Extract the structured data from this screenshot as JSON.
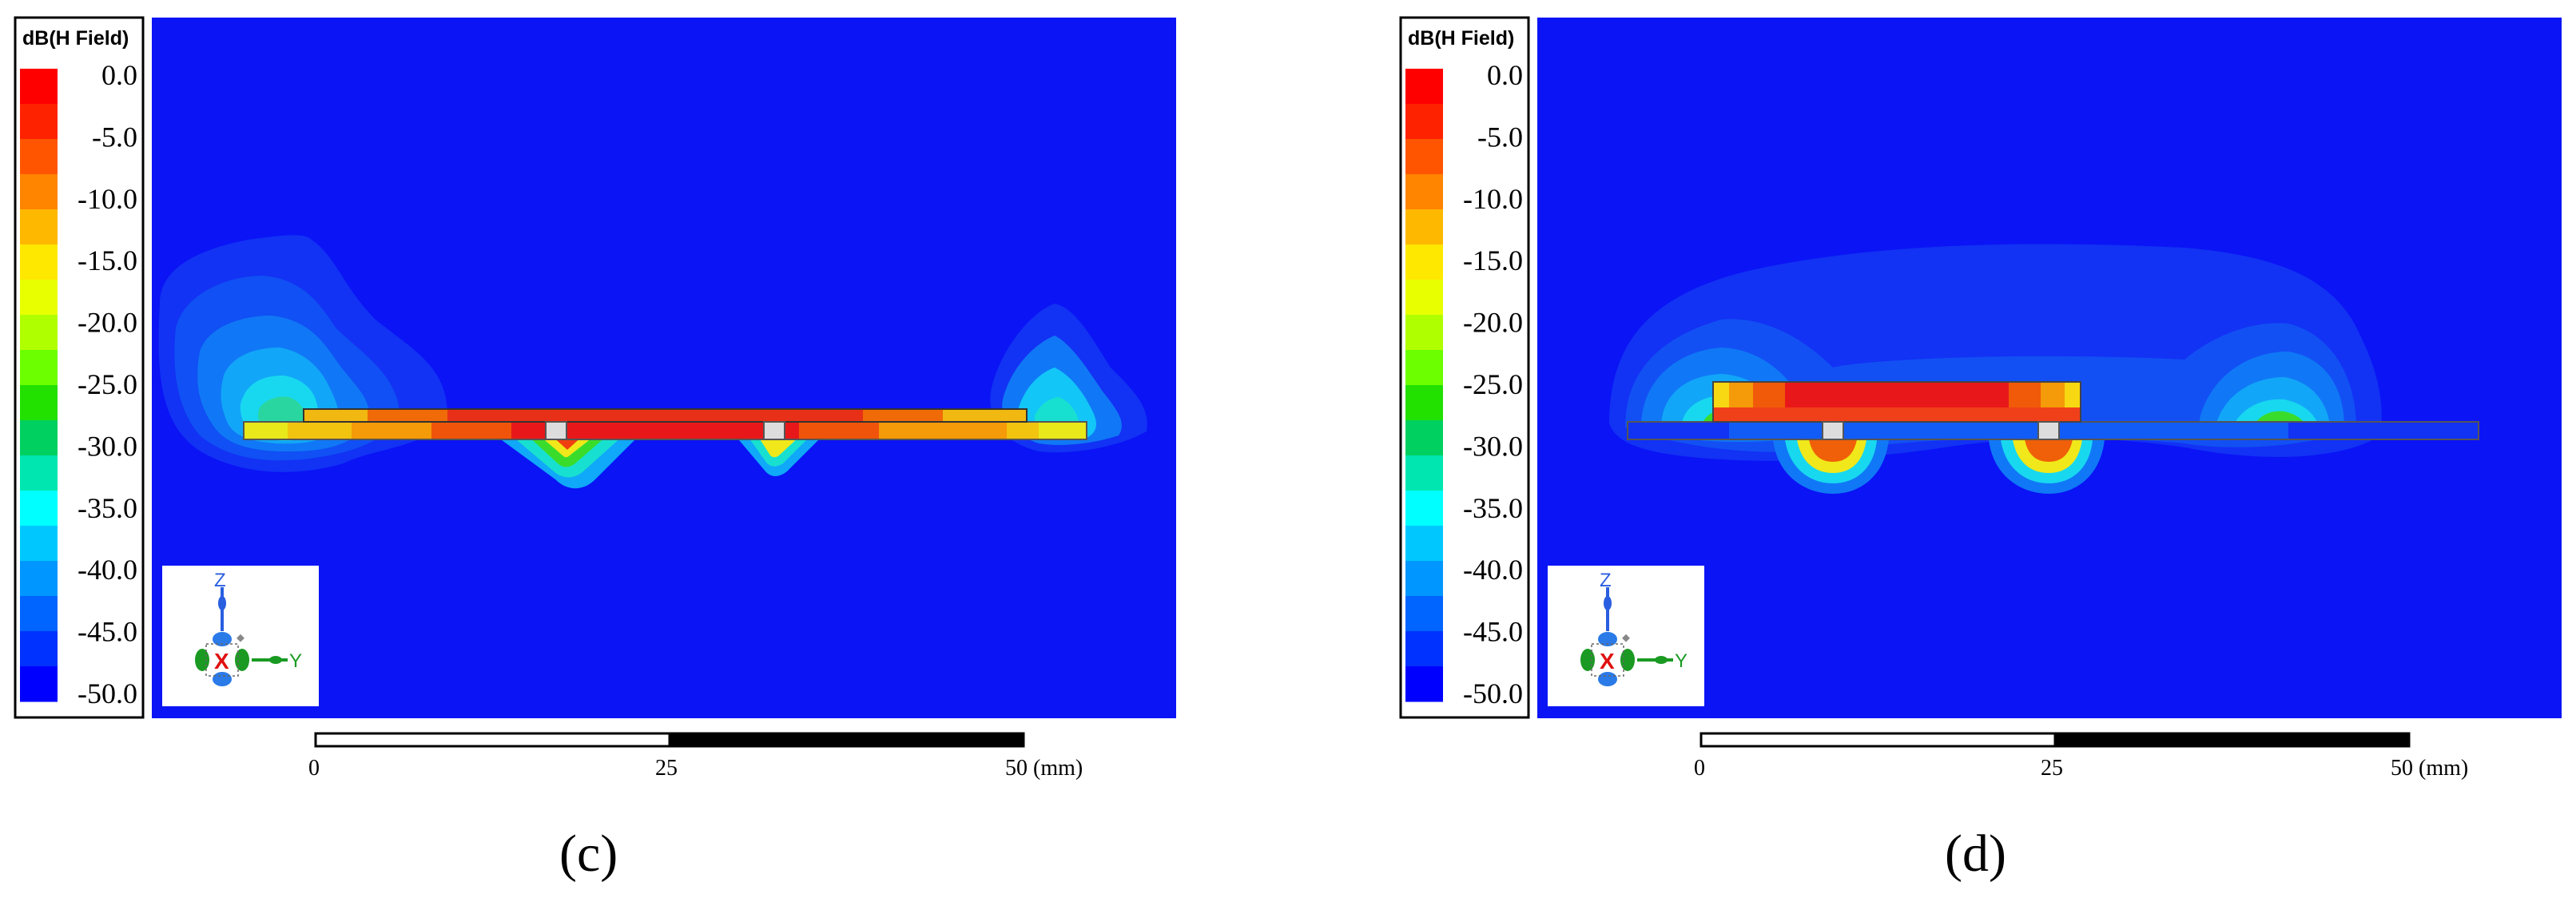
{
  "colors": {
    "background_field": "#0a14f5",
    "bands": [
      "#e8141a",
      "#f02e0c",
      "#f55a08",
      "#fb8a08",
      "#ffb806",
      "#ffe00a",
      "#f0f21a",
      "#c8f21c",
      "#80ea22",
      "#3adc2c",
      "#16cc5a",
      "#12dcaa",
      "#1af0ee",
      "#12c6f8",
      "#1096f8",
      "#1266f6",
      "#0f3ff4",
      "#0a14f5"
    ],
    "colorbar_blocks": [
      "#ff0000",
      "#ff2200",
      "#ff5500",
      "#ff8400",
      "#ffb800",
      "#ffe800",
      "#e8ff00",
      "#b0ff00",
      "#6cff00",
      "#22e000",
      "#00d060",
      "#00e6b0",
      "#00ffff",
      "#00c8ff",
      "#0096ff",
      "#0064ff",
      "#0032ff",
      "#0000ff"
    ]
  },
  "panels": [
    {
      "label": "(c)",
      "legend": {
        "title": "dB(H Field)",
        "ticks": [
          "0.0",
          "-5.0",
          "-10.0",
          "-15.0",
          "-20.0",
          "-25.0",
          "-30.0",
          "-35.0",
          "-40.0",
          "-45.0",
          "-50.0"
        ]
      },
      "axes": {
        "z": "Z",
        "x": "X",
        "y": "Y"
      },
      "scale": {
        "labels": [
          "0",
          "25",
          "50 (mm)"
        ]
      }
    },
    {
      "label": "(d)",
      "legend": {
        "title": "dB(H Field)",
        "ticks": [
          "0.0",
          "-5.0",
          "-10.0",
          "-15.0",
          "-20.0",
          "-25.0",
          "-30.0",
          "-35.0",
          "-40.0",
          "-45.0",
          "-50.0"
        ]
      },
      "axes": {
        "z": "Z",
        "x": "X",
        "y": "Y"
      },
      "scale": {
        "labels": [
          "0",
          "25",
          "50 (mm)"
        ]
      }
    }
  ]
}
